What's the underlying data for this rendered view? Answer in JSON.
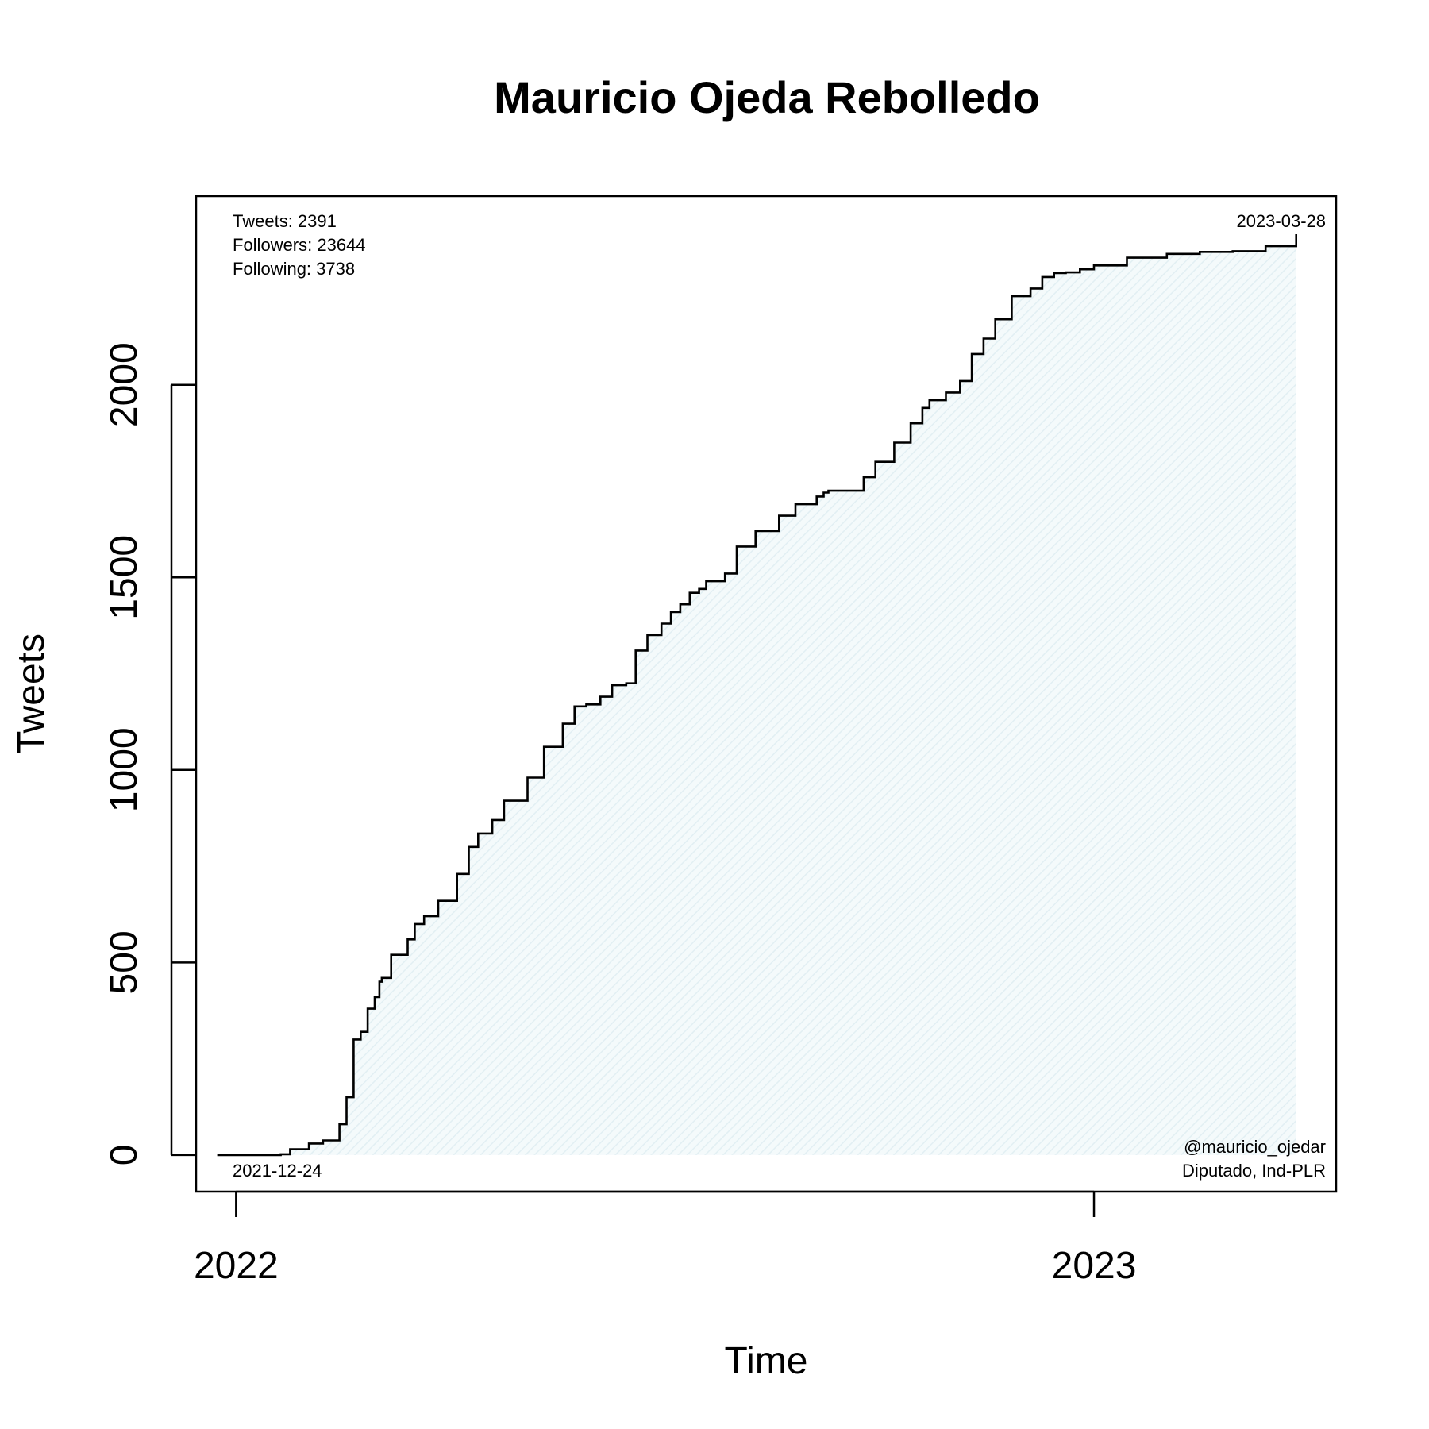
{
  "chart_data": {
    "type": "line",
    "step": true,
    "title": "Mauricio Ojeda Rebolledo",
    "xlabel": "Time",
    "ylabel": "Tweets",
    "xlim": [
      "2021-12-15",
      "2023-04-14"
    ],
    "ylim": [
      -95,
      2490
    ],
    "xticks": [
      {
        "date": "2022-01-01",
        "label": "2022"
      },
      {
        "date": "2023-01-01",
        "label": "2023"
      }
    ],
    "yticks": [
      0,
      500,
      1000,
      1500,
      2000
    ],
    "area_fill": "#eef6f8",
    "line_color": "#000000",
    "annotations": {
      "stats": [
        "Tweets: 2391",
        "Followers: 23644",
        "Following: 3738"
      ],
      "start_date": "2021-12-24",
      "end_date": "2023-03-28",
      "handle": "@mauricio_ojedar",
      "role": "Diputado, Ind-PLR"
    },
    "series": [
      {
        "x": [
          "2021-12-24",
          "2022-01-20",
          "2022-01-24",
          "2022-02-01",
          "2022-02-07",
          "2022-02-14",
          "2022-02-17",
          "2022-02-20",
          "2022-02-23",
          "2022-02-26",
          "2022-03-01",
          "2022-03-03",
          "2022-03-04",
          "2022-03-08",
          "2022-03-15",
          "2022-03-18",
          "2022-03-22",
          "2022-03-28",
          "2022-04-05",
          "2022-04-10",
          "2022-04-14",
          "2022-04-20",
          "2022-04-25",
          "2022-05-05",
          "2022-05-12",
          "2022-05-20",
          "2022-05-25",
          "2022-05-30",
          "2022-06-05",
          "2022-06-10",
          "2022-06-16",
          "2022-06-20",
          "2022-06-25",
          "2022-07-01",
          "2022-07-05",
          "2022-07-09",
          "2022-07-13",
          "2022-07-17",
          "2022-07-20",
          "2022-07-28",
          "2022-08-02",
          "2022-08-10",
          "2022-08-20",
          "2022-08-27",
          "2022-09-05",
          "2022-09-08",
          "2022-09-10",
          "2022-09-25",
          "2022-09-30",
          "2022-10-08",
          "2022-10-15",
          "2022-10-20",
          "2022-10-23",
          "2022-10-30",
          "2022-11-05",
          "2022-11-10",
          "2022-11-15",
          "2022-11-20",
          "2022-11-27",
          "2022-12-05",
          "2022-12-10",
          "2022-12-15",
          "2022-12-20",
          "2022-12-26",
          "2023-01-01",
          "2023-01-15",
          "2023-02-01",
          "2023-02-15",
          "2023-03-01",
          "2023-03-15",
          "2023-03-28"
        ],
        "values": [
          0,
          2,
          15,
          30,
          38,
          80,
          150,
          300,
          320,
          380,
          410,
          450,
          460,
          520,
          560,
          600,
          620,
          660,
          730,
          800,
          835,
          870,
          920,
          980,
          1060,
          1120,
          1165,
          1170,
          1190,
          1220,
          1225,
          1310,
          1350,
          1380,
          1410,
          1430,
          1460,
          1470,
          1490,
          1510,
          1580,
          1620,
          1660,
          1690,
          1710,
          1720,
          1725,
          1760,
          1800,
          1850,
          1900,
          1940,
          1960,
          1980,
          2010,
          2080,
          2120,
          2170,
          2230,
          2250,
          2280,
          2290,
          2292,
          2300,
          2310,
          2330,
          2340,
          2345,
          2347,
          2360,
          2391
        ]
      }
    ]
  }
}
